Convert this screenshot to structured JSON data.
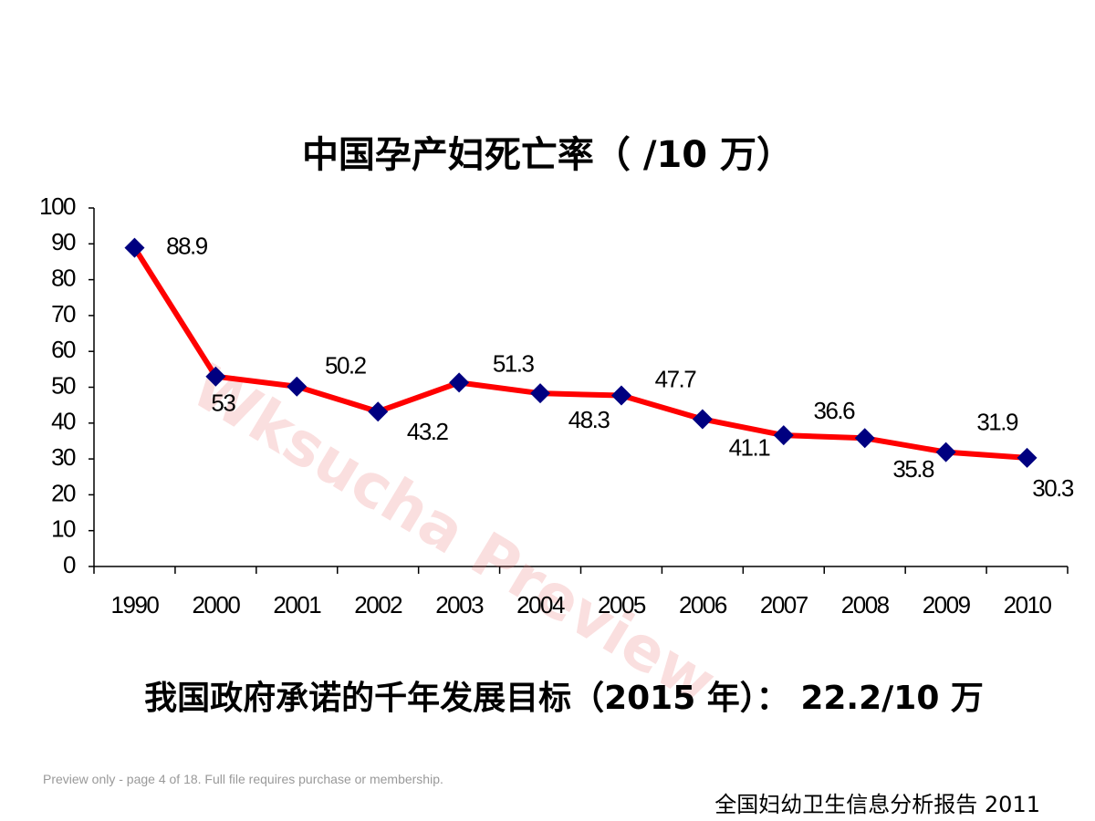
{
  "chart_data": {
    "type": "line",
    "title": "中国孕产妇死亡率（ /10 万）",
    "subtitle": "我国政府承诺的千年发展目标（2015 年）： 22.2/10 万",
    "categories": [
      "1990",
      "2000",
      "2001",
      "2002",
      "2003",
      "2004",
      "2005",
      "2006",
      "2007",
      "2008",
      "2009",
      "2010"
    ],
    "series": [
      {
        "name": "孕产妇死亡率",
        "color": "#ff0000",
        "marker_color": "#000080",
        "values": [
          88.9,
          53,
          50.2,
          43.2,
          51.3,
          48.3,
          47.7,
          41.1,
          36.6,
          35.8,
          31.9,
          30.3
        ]
      }
    ],
    "ylim": [
      0,
      100
    ],
    "yticks": [
      0,
      10,
      20,
      30,
      40,
      50,
      60,
      70,
      80,
      90,
      100
    ],
    "grid": false
  },
  "footer": "全国妇幼卫生信息分析报告 2011",
  "watermark": "Wksucha Preview",
  "preview_note": "Preview only - page 4 of 18. Full file requires purchase or membership."
}
